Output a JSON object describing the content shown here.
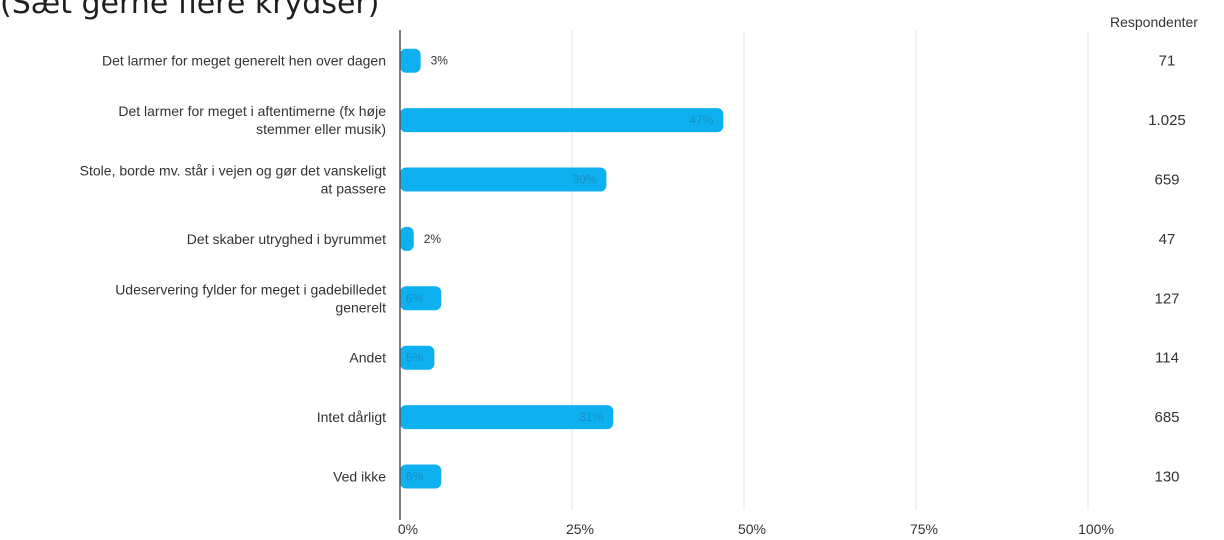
{
  "title": "(Sæt gerne flere krydser)",
  "respondents_header": "Respondenter",
  "colors": {
    "bar": "#0fb0ef",
    "grid": "#e6e6e6",
    "axis": "#555555",
    "label_inside": "#1a8fc4",
    "label_outside": "#333333"
  },
  "chart_data": {
    "type": "bar",
    "orientation": "horizontal",
    "categories": [
      [
        "Det larmer for meget generelt hen over dagen"
      ],
      [
        "Det larmer for meget i aftentimerne (fx høje",
        "stemmer eller musik)"
      ],
      [
        "Stole, borde mv. står i vejen og gør det vanskeligt",
        "at passere"
      ],
      [
        "Det skaber utryghed i byrummet"
      ],
      [
        "Udeservering fylder for meget i gadebilledet",
        "generelt"
      ],
      [
        "Andet"
      ],
      [
        "Intet dårligt"
      ],
      [
        "Ved ikke"
      ]
    ],
    "values": [
      3,
      47,
      30,
      2,
      6,
      5,
      31,
      6
    ],
    "value_labels": [
      "3%",
      "47%",
      "30%",
      "2%",
      "6%",
      "5%",
      "31%",
      "6%"
    ],
    "respondents": [
      "71",
      "1.025",
      "659",
      "47",
      "127",
      "114",
      "685",
      "130"
    ],
    "xlim": [
      0,
      100
    ],
    "xticks": [
      0,
      25,
      50,
      75,
      100
    ],
    "xtick_labels": [
      "0%",
      "25%",
      "50%",
      "75%",
      "100%"
    ],
    "grid": true,
    "legend": "none"
  }
}
